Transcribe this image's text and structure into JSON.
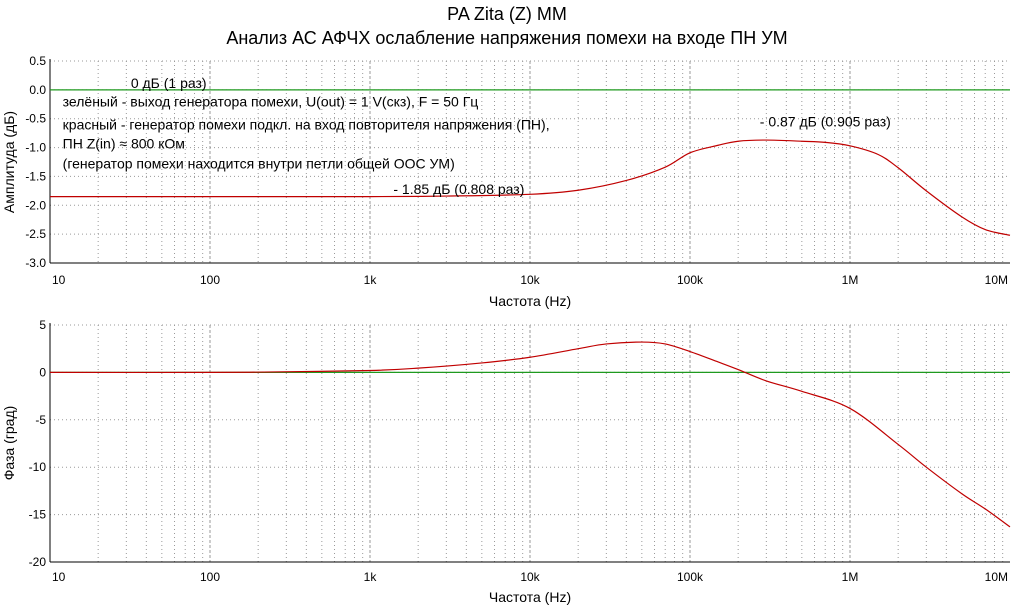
{
  "title": "PA Zita (Z) MM",
  "subtitle": "Анализ АС АФЧХ ослабление напряжения помехи на входе ПН УМ",
  "colors": {
    "green": "#1f9a1f",
    "red": "#c00000",
    "grid": "#9a9a9a",
    "axis": "#000000"
  },
  "chart_data": [
    {
      "type": "line",
      "xscale": "log",
      "xlim": [
        10,
        10000000
      ],
      "ylim": [
        -3.0,
        0.5
      ],
      "xlabel": "Частота (Hz)",
      "ylabel": "Амплитуда (дБ)",
      "xticks": [
        {
          "v": 10,
          "label": "10"
        },
        {
          "v": 100,
          "label": "100"
        },
        {
          "v": 1000,
          "label": "1k"
        },
        {
          "v": 10000,
          "label": "10k"
        },
        {
          "v": 100000,
          "label": "100k"
        },
        {
          "v": 1000000,
          "label": "1M"
        },
        {
          "v": 10000000,
          "label": "10M"
        }
      ],
      "yticks": [
        0.5,
        0.0,
        -0.5,
        -1.0,
        -1.5,
        -2.0,
        -2.5,
        -3.0
      ],
      "ytick_labels": [
        "0.5",
        "0.0",
        "-0.5",
        "-1.0",
        "-1.5",
        "-2.0",
        "-2.5",
        "-3.0"
      ],
      "grid": true,
      "series": [
        {
          "color": "green",
          "x": [
            10,
            10000000
          ],
          "y": [
            0,
            0
          ]
        },
        {
          "color": "red",
          "x": [
            10,
            100,
            1000,
            3000,
            10000,
            20000,
            40000,
            70000,
            100000,
            150000,
            200000,
            300000,
            500000,
            700000,
            1000000,
            1500000,
            2000000,
            3000000,
            5000000,
            7000000,
            10000000
          ],
          "y": [
            -1.85,
            -1.85,
            -1.85,
            -1.84,
            -1.81,
            -1.74,
            -1.57,
            -1.34,
            -1.09,
            -0.96,
            -0.89,
            -0.87,
            -0.89,
            -0.91,
            -0.97,
            -1.12,
            -1.35,
            -1.75,
            -2.2,
            -2.42,
            -2.52
          ]
        }
      ],
      "annotations": [
        {
          "text": "0 дБ (1 раз)",
          "x": 32,
          "y": 0.12
        },
        {
          "text": "- 1.85 дБ  (0.808 раз)",
          "x": 1400,
          "y": -1.72
        },
        {
          "text": "- 0.87 дБ (0.905 раз)",
          "x": 1800000,
          "y": -0.55,
          "anchor": "end"
        },
        {
          "text": "зелёный - выход генератора помехи, U(out) = 1 V(скз), F = 50 Гц",
          "x": 12,
          "y": -0.2
        },
        {
          "text": "красный - генератор помехи подкл. на вход повторителя напряжения (ПН),",
          "x": 12,
          "y": -0.6
        },
        {
          "text": " ПН Z(in) ≈  800 кОм",
          "x": 12,
          "y": -0.93
        },
        {
          "text": "(генератор помехи находится внутри петли общей ООС УМ)",
          "x": 12,
          "y": -1.28
        }
      ]
    },
    {
      "type": "line",
      "xscale": "log",
      "xlim": [
        10,
        10000000
      ],
      "ylim": [
        -20,
        5
      ],
      "xlabel": "Частота (Hz)",
      "ylabel": "Фаза (град)",
      "xticks": [
        {
          "v": 10,
          "label": "10"
        },
        {
          "v": 100,
          "label": "100"
        },
        {
          "v": 1000,
          "label": "1k"
        },
        {
          "v": 10000,
          "label": "10k"
        },
        {
          "v": 100000,
          "label": "100k"
        },
        {
          "v": 1000000,
          "label": "1M"
        },
        {
          "v": 10000000,
          "label": "10M"
        }
      ],
      "yticks": [
        5,
        0,
        -5,
        -10,
        -15,
        -20
      ],
      "ytick_labels": [
        "5",
        "0",
        "-5",
        "-10",
        "-15",
        "-20"
      ],
      "grid": true,
      "series": [
        {
          "color": "green",
          "x": [
            10,
            10000000
          ],
          "y": [
            0,
            0
          ]
        },
        {
          "color": "red",
          "x": [
            10,
            100,
            250,
            1000,
            2000,
            5000,
            10000,
            20000,
            30000,
            50000,
            70000,
            100000,
            150000,
            200000,
            300000,
            500000,
            1000000,
            2000000,
            3000000,
            5000000,
            7000000,
            10000000
          ],
          "y": [
            0,
            0,
            0.05,
            0.2,
            0.45,
            1.0,
            1.6,
            2.5,
            3.0,
            3.2,
            3.0,
            2.2,
            1.1,
            0.3,
            -0.9,
            -2.0,
            -3.8,
            -7.6,
            -10.0,
            -12.8,
            -14.4,
            -16.3
          ]
        }
      ],
      "annotations": []
    }
  ]
}
